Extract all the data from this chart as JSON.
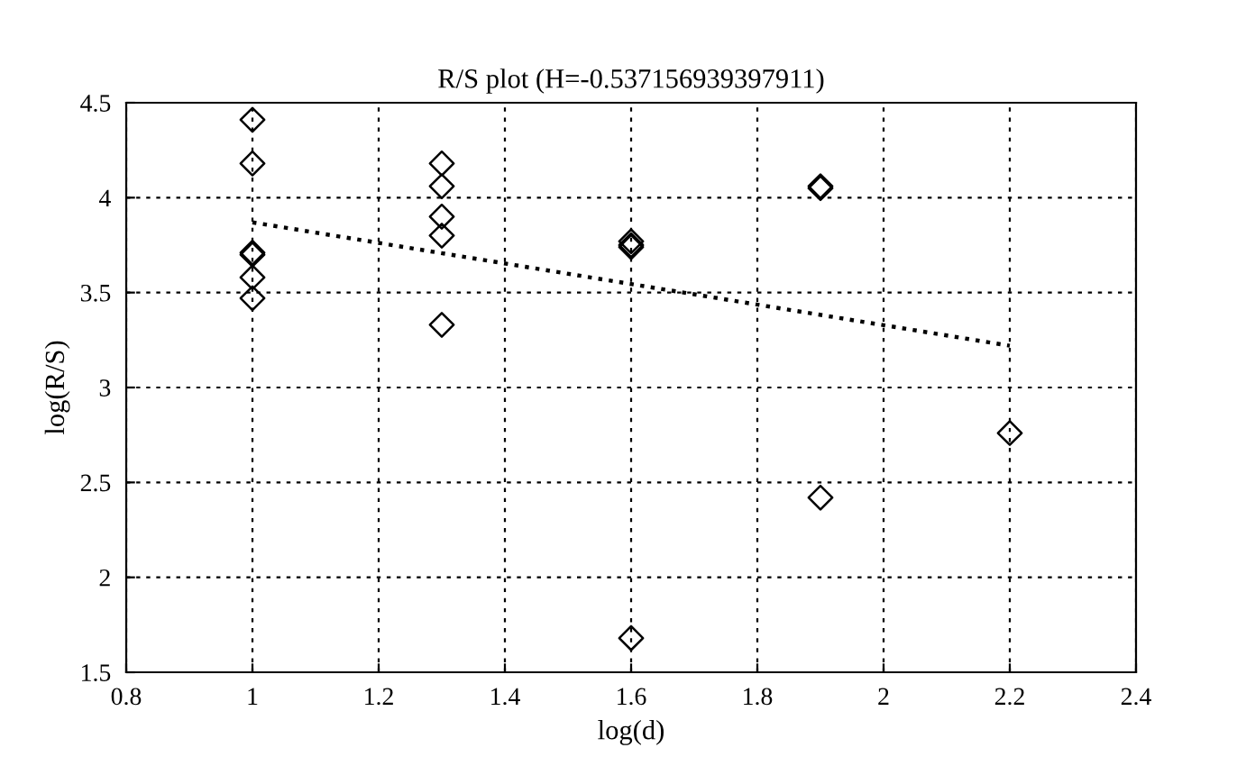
{
  "chart_data": {
    "type": "scatter",
    "title": "R/S plot (H=-0.537156939397911)",
    "xlabel": "log(d)",
    "ylabel": "log(R/S)",
    "xlim": [
      0.8,
      2.4
    ],
    "xticks": [
      0.8,
      1,
      1.2,
      1.4,
      1.6,
      1.8,
      2,
      2.2,
      2.4
    ],
    "ylim": [
      1.5,
      4.5
    ],
    "yticks": [
      1.5,
      2,
      2.5,
      3,
      3.5,
      4,
      4.5
    ],
    "grid": true,
    "series": [
      {
        "color": "#000000",
        "marker": "diamond",
        "x": [
          1,
          1,
          1,
          1,
          1,
          1,
          1.3,
          1.3,
          1.3,
          1.3,
          1.3,
          1.6,
          1.6,
          1.6,
          1.6,
          1.9,
          1.9,
          1.9,
          2.2
        ],
        "values": [
          4.41,
          4.18,
          3.71,
          3.7,
          3.58,
          3.47,
          4.18,
          4.06,
          3.9,
          3.8,
          3.33,
          3.77,
          3.75,
          3.74,
          1.68,
          4.06,
          4.05,
          2.42,
          2.76
        ]
      },
      {
        "type": "line",
        "color": "#000000",
        "line_style": "dotted",
        "x": [
          1,
          2.2
        ],
        "values": [
          3.87,
          3.22
        ]
      }
    ]
  }
}
